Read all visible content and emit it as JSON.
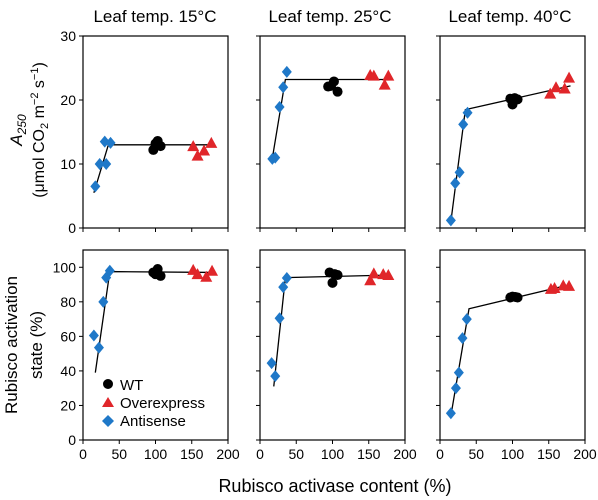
{
  "figure": {
    "xlabel": "Rubisco activase content (%)"
  },
  "legend": {
    "placement": "inside bottom-left panel",
    "entries": [
      {
        "label": "WT",
        "marker": "circle",
        "color": "#000000"
      },
      {
        "label": "Overexpress",
        "marker": "triangle",
        "color": "#e0262a"
      },
      {
        "label": "Antisense",
        "marker": "diamond",
        "color": "#1f78c8"
      }
    ]
  },
  "colors": {
    "wt": "#000000",
    "overexpress": "#e0262a",
    "antisense": "#1f78c8",
    "axis": "#000000"
  },
  "chart_data": [
    {
      "type": "scatter",
      "title": "Leaf temp. 15°C",
      "row": "A250",
      "col": 0,
      "ylabel": [
        "A250",
        "(μmol CO2 m−2 s−1)"
      ],
      "xlim": [
        0,
        200
      ],
      "ylim": [
        0,
        30
      ],
      "xticks": [
        0,
        50,
        100,
        150,
        200
      ],
      "yticks": [
        0,
        10,
        20,
        30
      ],
      "series": [
        {
          "name": "Antisense",
          "marker": "diamond",
          "points": [
            [
              17,
              6.5
            ],
            [
              23,
              10
            ],
            [
              30,
              13.5
            ],
            [
              32,
              10
            ],
            [
              38,
              13.3
            ]
          ]
        },
        {
          "name": "WT",
          "marker": "circle",
          "points": [
            [
              97,
              12.2
            ],
            [
              100,
              13.2
            ],
            [
              103,
              13.6
            ],
            [
              107,
              12.8
            ]
          ]
        },
        {
          "name": "Overexpress",
          "marker": "triangle",
          "points": [
            [
              152,
              12.8
            ],
            [
              158,
              11.3
            ],
            [
              167,
              12.1
            ],
            [
              177,
              13.3
            ]
          ]
        }
      ],
      "fit": [
        [
          15,
          5.5
        ],
        [
          35,
          13
        ],
        [
          180,
          13
        ]
      ]
    },
    {
      "type": "scatter",
      "title": "Leaf temp. 25°C",
      "row": "A250",
      "col": 1,
      "xlim": [
        0,
        200
      ],
      "ylim": [
        0,
        30
      ],
      "xticks": [
        0,
        50,
        100,
        150,
        200
      ],
      "yticks": [
        0,
        10,
        20,
        30
      ],
      "series": [
        {
          "name": "Antisense",
          "marker": "diamond",
          "points": [
            [
              17,
              10.8
            ],
            [
              21,
              11
            ],
            [
              27,
              18.9
            ],
            [
              32,
              22
            ],
            [
              37,
              24.4
            ]
          ]
        },
        {
          "name": "WT",
          "marker": "circle",
          "points": [
            [
              94,
              22.1
            ],
            [
              98,
              22.2
            ],
            [
              102,
              22.9
            ],
            [
              107,
              21.3
            ]
          ]
        },
        {
          "name": "Overexpress",
          "marker": "triangle",
          "points": [
            [
              152,
              23.9
            ],
            [
              157,
              23.8
            ],
            [
              172,
              22.4
            ],
            [
              177,
              23.8
            ]
          ]
        }
      ],
      "fit": [
        [
          16,
          10.2
        ],
        [
          35,
          23.2
        ],
        [
          180,
          23.2
        ]
      ]
    },
    {
      "type": "scatter",
      "title": "Leaf temp. 40°C",
      "row": "A250",
      "col": 2,
      "xlim": [
        0,
        200
      ],
      "ylim": [
        0,
        30
      ],
      "xticks": [
        0,
        50,
        100,
        150,
        200
      ],
      "yticks": [
        0,
        10,
        20,
        30
      ],
      "series": [
        {
          "name": "Antisense",
          "marker": "diamond",
          "points": [
            [
              15,
              1.2
            ],
            [
              21,
              7
            ],
            [
              27,
              8.7
            ],
            [
              32,
              16.2
            ],
            [
              38,
              18
            ]
          ]
        },
        {
          "name": "WT",
          "marker": "circle",
          "points": [
            [
              97,
              20.2
            ],
            [
              100,
              19.3
            ],
            [
              103,
              20.3
            ],
            [
              107,
              20.1
            ]
          ]
        },
        {
          "name": "Overexpress",
          "marker": "triangle",
          "points": [
            [
              152,
              21
            ],
            [
              160,
              22
            ],
            [
              172,
              21.8
            ],
            [
              178,
              23.5
            ]
          ]
        }
      ],
      "fit": [
        [
          15,
          1
        ],
        [
          35,
          18.5
        ],
        [
          180,
          22.2
        ]
      ]
    },
    {
      "type": "scatter",
      "row": "activation",
      "col": 0,
      "ylabel": [
        "Rubisco activation",
        "state (%)"
      ],
      "xlim": [
        0,
        200
      ],
      "ylim": [
        0,
        110
      ],
      "xticks": [
        0,
        50,
        100,
        150,
        200
      ],
      "yticks": [
        0,
        20,
        40,
        60,
        80,
        100
      ],
      "series": [
        {
          "name": "Antisense",
          "marker": "diamond",
          "points": [
            [
              15,
              60.5
            ],
            [
              22,
              53.5
            ],
            [
              28,
              80
            ],
            [
              32,
              94
            ],
            [
              37,
              98
            ]
          ]
        },
        {
          "name": "WT",
          "marker": "circle",
          "points": [
            [
              97,
              97
            ],
            [
              100,
              96
            ],
            [
              103,
              99
            ],
            [
              107,
              95
            ]
          ]
        },
        {
          "name": "Overexpress",
          "marker": "triangle",
          "points": [
            [
              152,
              98.5
            ],
            [
              158,
              96
            ],
            [
              170,
              94.5
            ],
            [
              178,
              98
            ]
          ]
        }
      ],
      "fit": [
        [
          17,
          39
        ],
        [
          37,
          97.5
        ],
        [
          180,
          97
        ]
      ]
    },
    {
      "type": "scatter",
      "row": "activation",
      "col": 1,
      "xlim": [
        0,
        200
      ],
      "ylim": [
        0,
        110
      ],
      "xticks": [
        0,
        50,
        100,
        150,
        200
      ],
      "yticks": [
        0,
        20,
        40,
        60,
        80,
        100
      ],
      "series": [
        {
          "name": "Antisense",
          "marker": "diamond",
          "points": [
            [
              16,
              44.5
            ],
            [
              21,
              37
            ],
            [
              27,
              70.5
            ],
            [
              32,
              88.5
            ],
            [
              37,
              93.8
            ]
          ]
        },
        {
          "name": "WT",
          "marker": "circle",
          "points": [
            [
              96,
              97
            ],
            [
              100,
              91
            ],
            [
              103,
              96
            ],
            [
              107,
              95.5
            ]
          ]
        },
        {
          "name": "Overexpress",
          "marker": "triangle",
          "points": [
            [
              152,
              92.5
            ],
            [
              157,
              96.5
            ],
            [
              170,
              96
            ],
            [
              177,
              95.5
            ]
          ]
        }
      ],
      "fit": [
        [
          19,
          31
        ],
        [
          35,
          94
        ],
        [
          180,
          95.5
        ]
      ]
    },
    {
      "type": "scatter",
      "row": "activation",
      "col": 2,
      "xlim": [
        0,
        200
      ],
      "ylim": [
        0,
        110
      ],
      "xticks": [
        0,
        50,
        100,
        150,
        200
      ],
      "yticks": [
        0,
        20,
        40,
        60,
        80,
        100
      ],
      "series": [
        {
          "name": "Antisense",
          "marker": "diamond",
          "points": [
            [
              15,
              15.5
            ],
            [
              22,
              30
            ],
            [
              26,
              39
            ],
            [
              31,
              59
            ],
            [
              37,
              70
            ]
          ]
        },
        {
          "name": "WT",
          "marker": "circle",
          "points": [
            [
              97,
              82.5
            ],
            [
              100,
              83
            ],
            [
              104,
              82.8
            ],
            [
              107,
              82.5
            ]
          ]
        },
        {
          "name": "Overexpress",
          "marker": "triangle",
          "points": [
            [
              153,
              87.5
            ],
            [
              158,
              88
            ],
            [
              170,
              89.5
            ],
            [
              178,
              89.2
            ]
          ]
        }
      ],
      "fit": [
        [
          15,
          14
        ],
        [
          40,
          76
        ],
        [
          180,
          90
        ]
      ]
    }
  ]
}
